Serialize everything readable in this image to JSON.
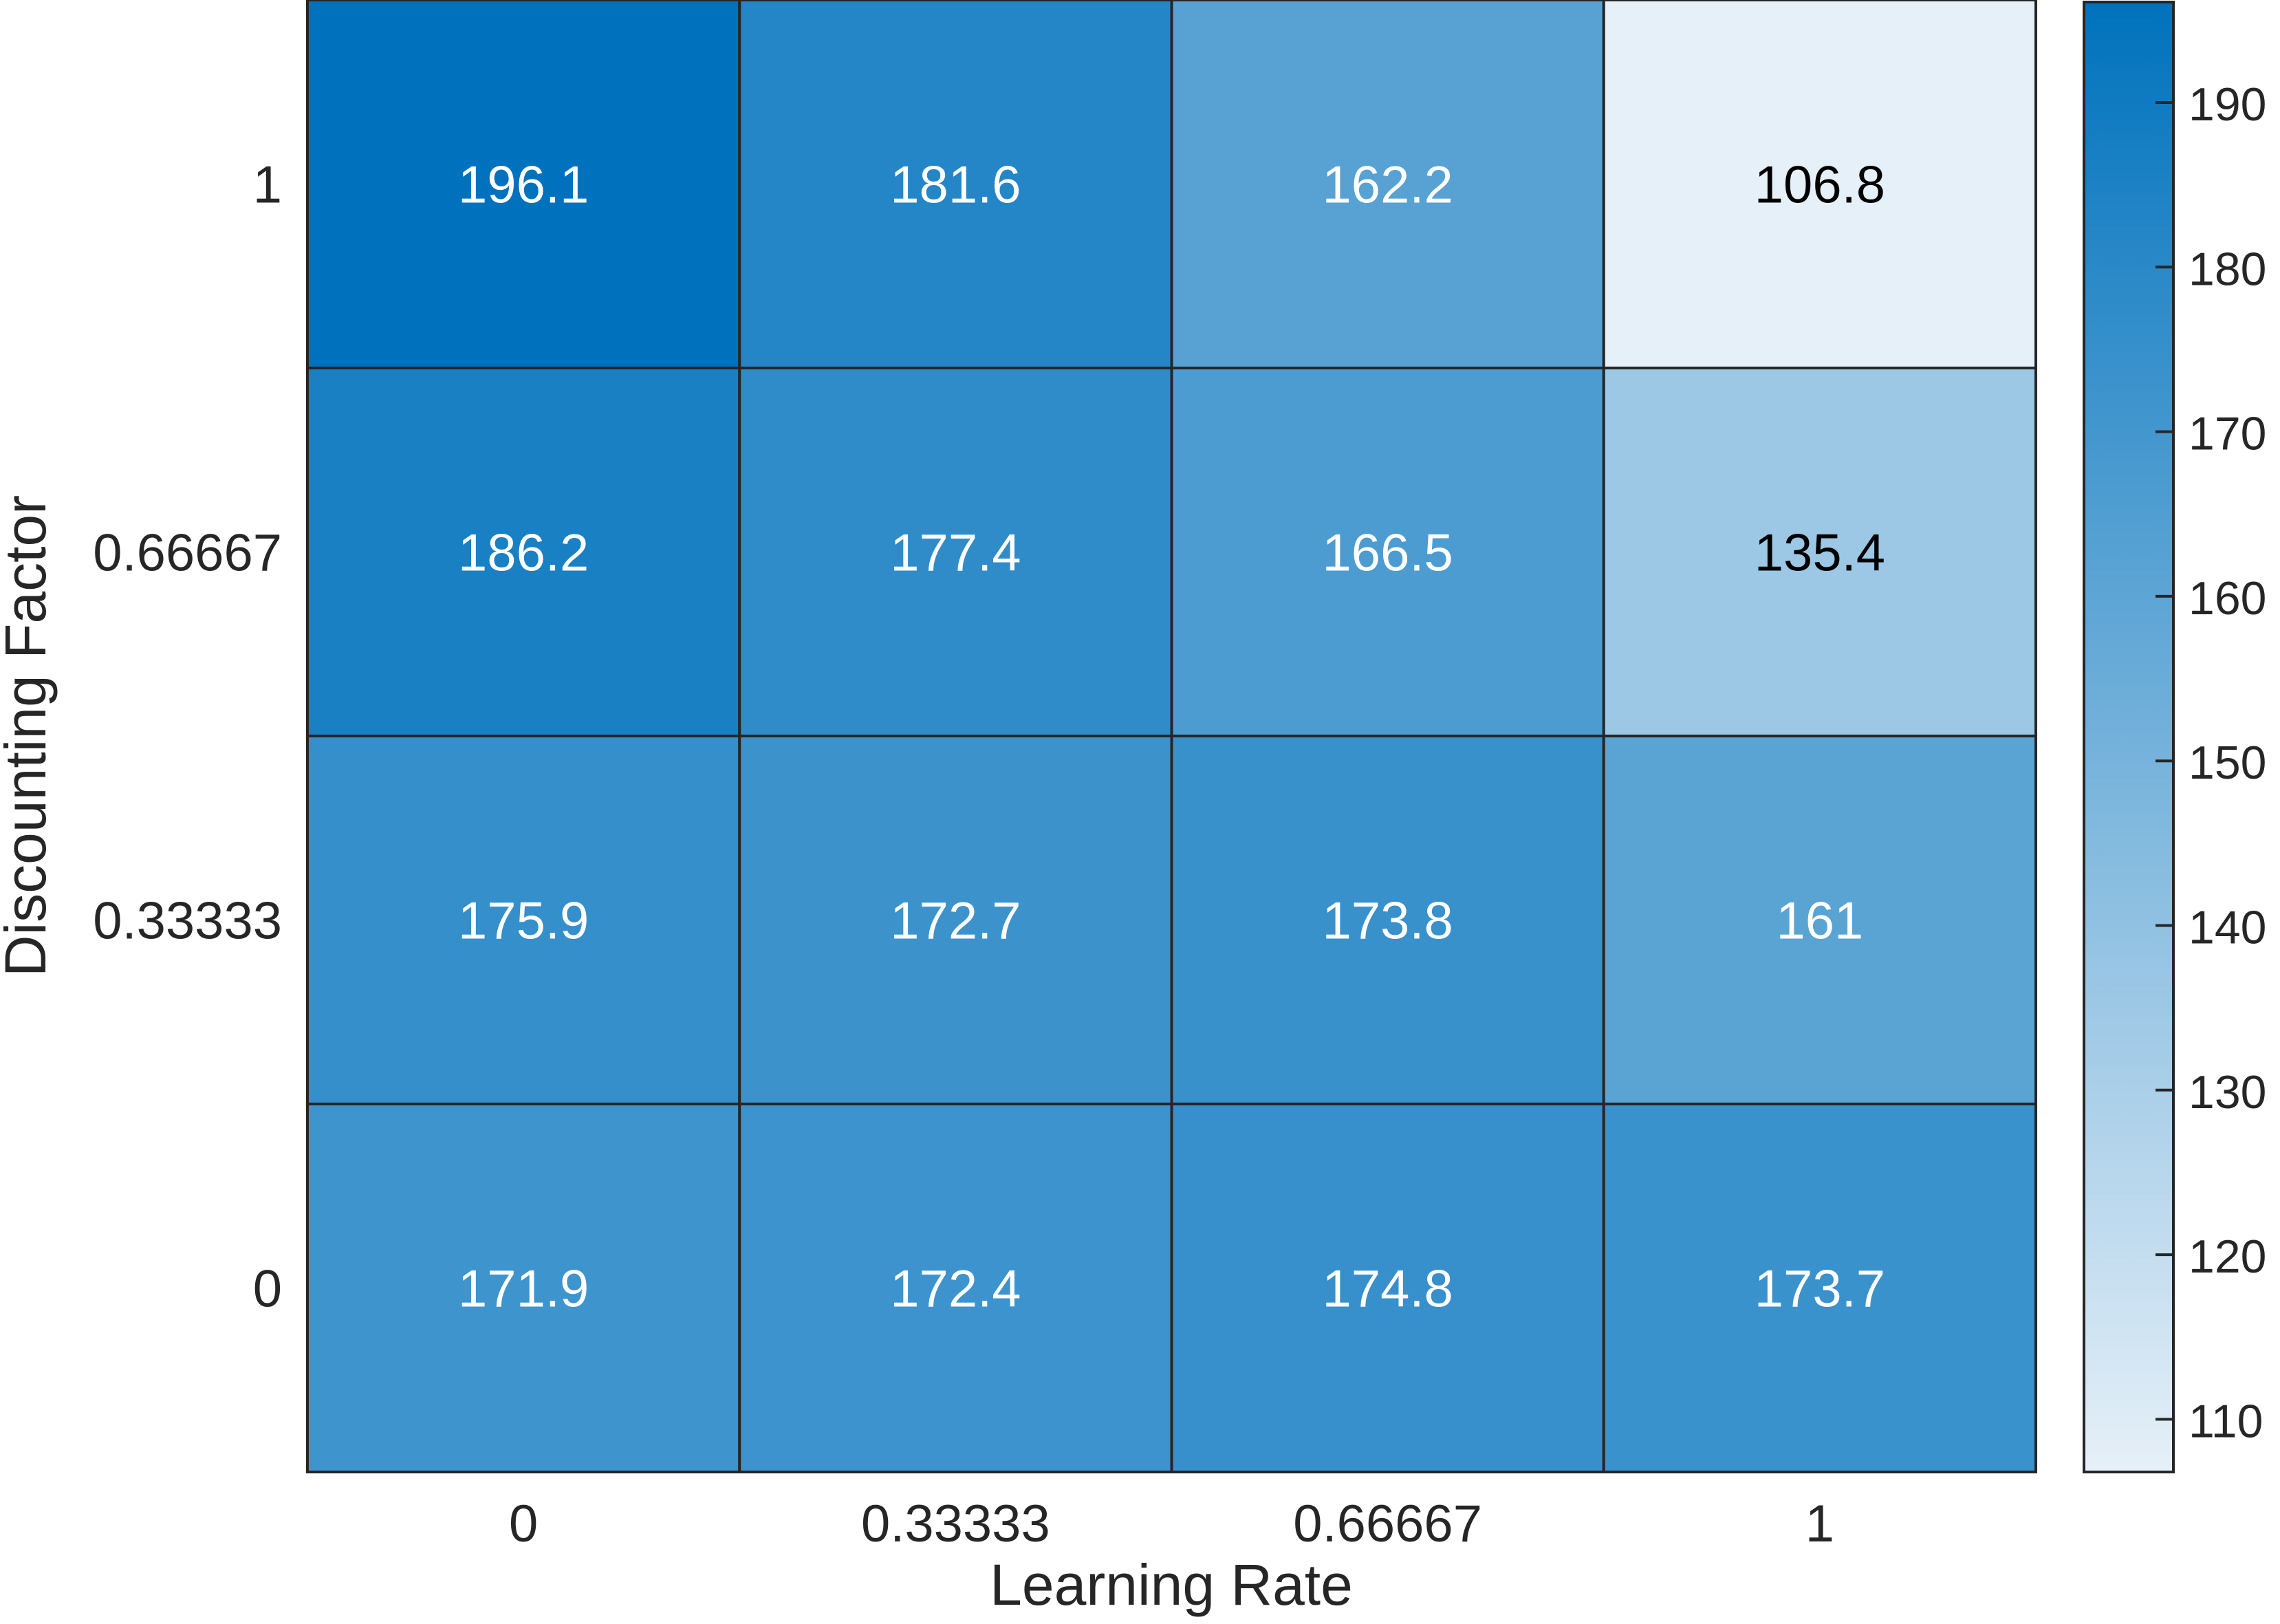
{
  "chart_data": {
    "type": "heatmap",
    "title": "",
    "xlabel": "Learning Rate",
    "ylabel": "Discounting Factor",
    "x_categories": [
      "0",
      "0.33333",
      "0.66667",
      "1"
    ],
    "y_categories": [
      "1",
      "0.66667",
      "0.33333",
      "0"
    ],
    "values": [
      [
        196.1,
        181.6,
        162.2,
        106.8
      ],
      [
        186.2,
        177.4,
        166.5,
        135.4
      ],
      [
        175.9,
        172.7,
        173.8,
        161
      ],
      [
        171.9,
        172.4,
        174.8,
        173.7
      ]
    ],
    "colorbar": {
      "min": 106.8,
      "max": 196.1,
      "ticks": [
        110,
        120,
        130,
        140,
        150,
        160,
        170,
        180,
        190
      ],
      "color_low": "#e6f0f8",
      "color_high": "#0072bd"
    },
    "grid": true,
    "legend": "none"
  }
}
